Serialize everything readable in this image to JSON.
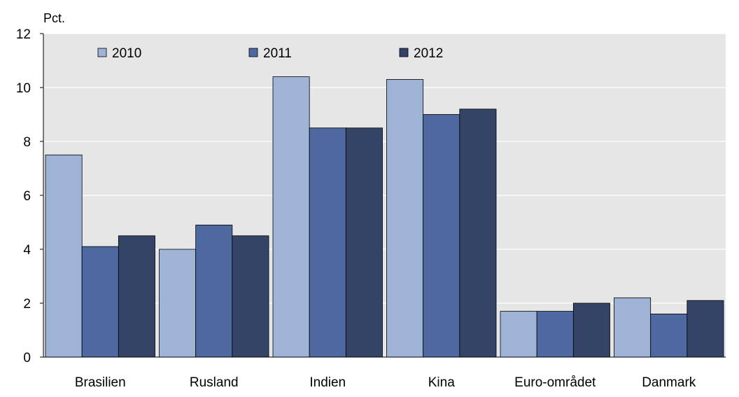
{
  "chart_data": {
    "type": "bar",
    "unit_label": "Pct.",
    "categories": [
      "Brasilien",
      "Rusland",
      "Indien",
      "Kina",
      "Euro-området",
      "Danmark"
    ],
    "series": [
      {
        "name": "2010",
        "values": [
          7.5,
          4.0,
          10.4,
          10.3,
          1.7,
          2.2
        ],
        "color": "#9fb3d7"
      },
      {
        "name": "2011",
        "values": [
          4.1,
          4.9,
          8.5,
          9.0,
          1.7,
          1.6
        ],
        "color": "#4d69a0"
      },
      {
        "name": "2012",
        "values": [
          4.5,
          4.5,
          8.5,
          9.2,
          2.0,
          2.1
        ],
        "color": "#344467"
      }
    ],
    "ylim": [
      0,
      12
    ],
    "yticks": [
      0,
      2,
      4,
      6,
      8,
      10,
      12
    ],
    "grid": true,
    "legend_position": "top",
    "colors": {
      "plot_background": "#e6e6e6",
      "outer_background": "#ffffff",
      "gridline": "#ffffff",
      "axis": "#000000",
      "bar_outline": "#000000"
    }
  }
}
